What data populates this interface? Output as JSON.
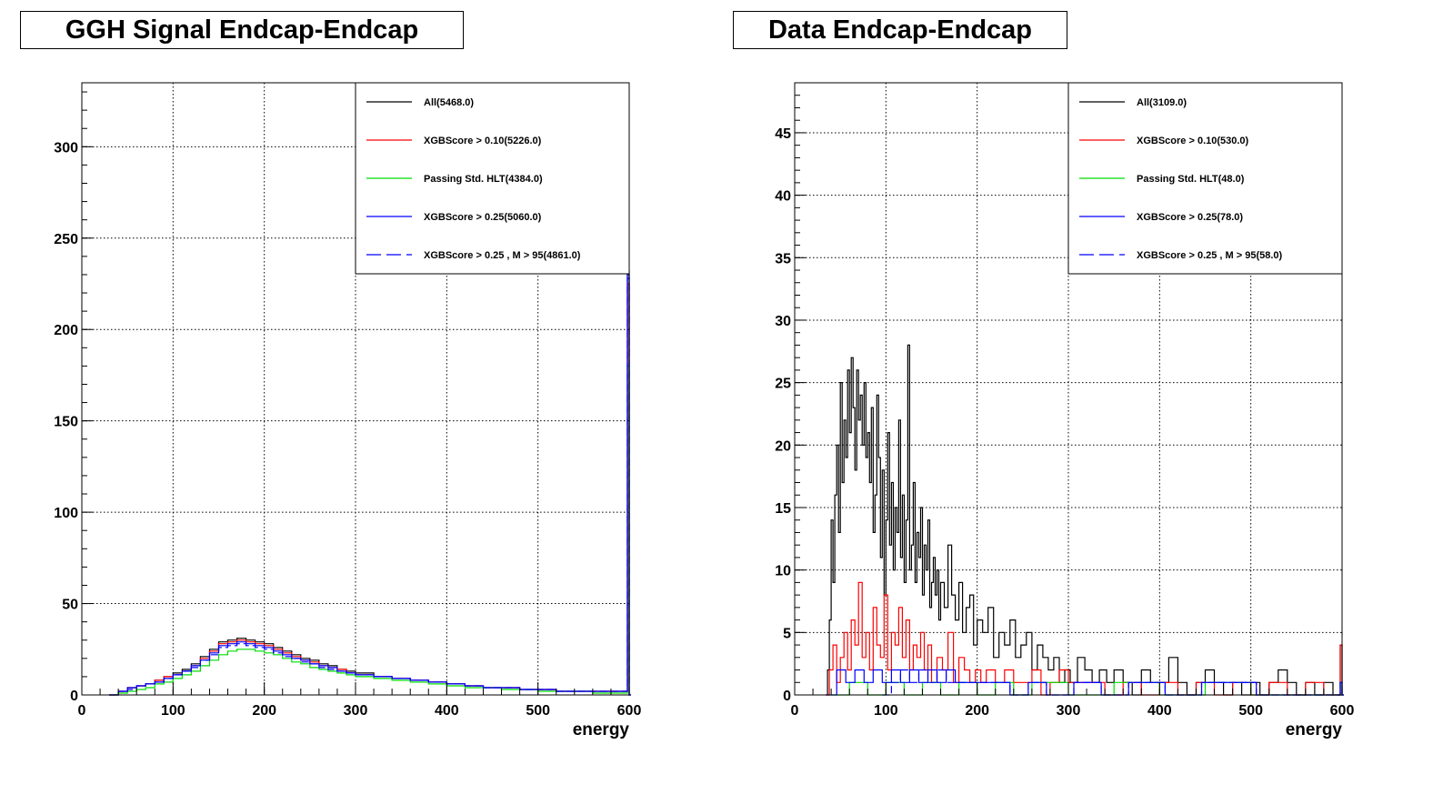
{
  "chart_data": [
    {
      "type": "line",
      "style": "step-histogram",
      "title": "GGH Signal Endcap-Endcap",
      "xlabel": "energy",
      "ylabel": "",
      "xlim": [
        0,
        600
      ],
      "ylim": [
        0,
        335
      ],
      "xticks": [
        0,
        100,
        200,
        300,
        400,
        500,
        600
      ],
      "yticks": [
        0,
        50,
        100,
        150,
        200,
        250,
        300
      ],
      "grid": true,
      "legend_position": "top-right",
      "bin_width": 2,
      "series": [
        {
          "name": "All(5468.0)",
          "color": "#000000",
          "dash": "solid",
          "x": [
            30,
            40,
            50,
            60,
            70,
            80,
            90,
            100,
            110,
            120,
            130,
            140,
            150,
            160,
            170,
            180,
            190,
            200,
            210,
            220,
            230,
            240,
            250,
            260,
            270,
            280,
            290,
            300,
            320,
            340,
            360,
            380,
            400,
            420,
            440,
            460,
            480,
            500,
            520,
            540,
            560,
            580,
            598,
            600
          ],
          "y": [
            0,
            2,
            4,
            5,
            6,
            8,
            10,
            12,
            14,
            17,
            21,
            25,
            29,
            30,
            31,
            30,
            29,
            28,
            26,
            24,
            22,
            20,
            19,
            17,
            16,
            14,
            13,
            12,
            10,
            9,
            8,
            7,
            6,
            5,
            4,
            4,
            3,
            3,
            2,
            2,
            2,
            2,
            230,
            0
          ]
        },
        {
          "name": "XGBScore > 0.10(5226.0)",
          "color": "#ff0000",
          "dash": "solid",
          "x": [
            30,
            40,
            50,
            60,
            70,
            80,
            90,
            100,
            110,
            120,
            130,
            140,
            150,
            160,
            170,
            180,
            190,
            200,
            210,
            220,
            230,
            240,
            250,
            260,
            270,
            280,
            290,
            300,
            320,
            340,
            360,
            380,
            400,
            420,
            440,
            460,
            480,
            500,
            520,
            540,
            560,
            580,
            598,
            600
          ],
          "y": [
            0,
            2,
            4,
            5,
            6,
            8,
            10,
            11,
            13,
            16,
            20,
            24,
            28,
            29,
            30,
            29,
            28,
            27,
            25,
            23,
            21,
            19,
            18,
            16,
            15,
            14,
            12,
            11,
            10,
            9,
            8,
            7,
            6,
            5,
            4,
            4,
            3,
            3,
            2,
            2,
            2,
            2,
            225,
            0
          ]
        },
        {
          "name": "Passing Std. HLT(4384.0)",
          "color": "#00dd00",
          "dash": "solid",
          "x": [
            30,
            40,
            50,
            60,
            70,
            80,
            90,
            100,
            110,
            120,
            130,
            140,
            150,
            160,
            170,
            180,
            190,
            200,
            210,
            220,
            230,
            240,
            250,
            260,
            270,
            280,
            290,
            300,
            320,
            340,
            360,
            380,
            400,
            420,
            440,
            460,
            480,
            500,
            520,
            540,
            560,
            580,
            598,
            600
          ],
          "y": [
            0,
            1,
            2,
            3,
            4,
            6,
            7,
            9,
            11,
            13,
            16,
            19,
            22,
            24,
            25,
            25,
            24,
            23,
            22,
            20,
            18,
            17,
            15,
            14,
            13,
            12,
            11,
            10,
            9,
            8,
            7,
            6,
            5,
            4,
            4,
            3,
            3,
            2,
            2,
            2,
            1,
            1,
            180,
            0
          ]
        },
        {
          "name": "XGBScore > 0.25(5060.0)",
          "color": "#0000ff",
          "dash": "solid",
          "x": [
            30,
            40,
            50,
            60,
            70,
            80,
            90,
            100,
            110,
            120,
            130,
            140,
            150,
            160,
            170,
            180,
            190,
            200,
            210,
            220,
            230,
            240,
            250,
            260,
            270,
            280,
            290,
            300,
            320,
            340,
            360,
            380,
            400,
            420,
            440,
            460,
            480,
            500,
            520,
            540,
            560,
            580,
            598,
            600
          ],
          "y": [
            0,
            2,
            4,
            5,
            6,
            7,
            9,
            11,
            13,
            16,
            19,
            23,
            27,
            28,
            29,
            28,
            27,
            26,
            24,
            22,
            20,
            19,
            17,
            16,
            15,
            13,
            12,
            11,
            10,
            9,
            8,
            7,
            6,
            5,
            4,
            4,
            3,
            3,
            2,
            2,
            2,
            2,
            232,
            0
          ]
        },
        {
          "name": "XGBScore > 0.25 , M > 95(4861.0)",
          "color": "#0000ff",
          "dash": "dashed",
          "x": [
            30,
            40,
            50,
            60,
            70,
            80,
            90,
            100,
            110,
            120,
            130,
            140,
            150,
            160,
            170,
            180,
            190,
            200,
            210,
            220,
            230,
            240,
            250,
            260,
            270,
            280,
            290,
            300,
            320,
            340,
            360,
            380,
            400,
            420,
            440,
            460,
            480,
            500,
            520,
            540,
            560,
            580,
            598,
            600
          ],
          "y": [
            0,
            2,
            3,
            5,
            6,
            7,
            9,
            11,
            13,
            15,
            19,
            22,
            26,
            27,
            28,
            27,
            26,
            25,
            23,
            21,
            20,
            18,
            17,
            15,
            14,
            13,
            12,
            11,
            10,
            9,
            8,
            7,
            6,
            5,
            4,
            4,
            3,
            3,
            2,
            2,
            2,
            2,
            228,
            0
          ]
        }
      ]
    },
    {
      "type": "line",
      "style": "step-histogram",
      "title": "Data Endcap-Endcap",
      "xlabel": "energy",
      "ylabel": "",
      "xlim": [
        0,
        600
      ],
      "ylim": [
        0,
        49
      ],
      "xticks": [
        0,
        100,
        200,
        300,
        400,
        500,
        600
      ],
      "yticks": [
        0,
        5,
        10,
        15,
        20,
        25,
        30,
        35,
        40,
        45
      ],
      "grid": true,
      "legend_position": "top-right",
      "bin_width": 2,
      "series": [
        {
          "name": "All(3109.0)",
          "color": "#000000",
          "dash": "solid",
          "x": [
            34,
            36,
            38,
            40,
            42,
            44,
            46,
            48,
            50,
            52,
            54,
            56,
            58,
            60,
            62,
            64,
            66,
            68,
            70,
            72,
            74,
            76,
            78,
            80,
            82,
            84,
            86,
            88,
            90,
            92,
            94,
            96,
            98,
            100,
            102,
            104,
            106,
            108,
            110,
            112,
            114,
            116,
            118,
            120,
            122,
            124,
            126,
            128,
            130,
            132,
            134,
            136,
            138,
            140,
            142,
            144,
            146,
            148,
            150,
            152,
            154,
            156,
            158,
            160,
            164,
            168,
            172,
            176,
            180,
            184,
            188,
            192,
            196,
            200,
            206,
            212,
            218,
            224,
            230,
            236,
            242,
            248,
            254,
            260,
            266,
            272,
            278,
            284,
            290,
            296,
            302,
            310,
            318,
            326,
            334,
            342,
            350,
            360,
            370,
            380,
            390,
            400,
            410,
            420,
            430,
            440,
            450,
            460,
            470,
            480,
            490,
            500,
            510,
            520,
            530,
            540,
            550,
            560,
            570,
            580,
            590,
            598,
            600
          ],
          "y": [
            0,
            2,
            6,
            14,
            9,
            16,
            20,
            13,
            25,
            17,
            22,
            19,
            26,
            21,
            27,
            23,
            18,
            26,
            22,
            24,
            20,
            25,
            19,
            21,
            17,
            23,
            13,
            16,
            24,
            19,
            11,
            18,
            8,
            14,
            21,
            12,
            17,
            10,
            15,
            13,
            22,
            11,
            16,
            9,
            14,
            28,
            10,
            12,
            17,
            9,
            13,
            11,
            15,
            8,
            12,
            10,
            14,
            7,
            9,
            11,
            8,
            10,
            6,
            9,
            7,
            12,
            8,
            6,
            9,
            5,
            7,
            8,
            4,
            6,
            5,
            7,
            3,
            5,
            4,
            6,
            3,
            4,
            5,
            2,
            4,
            3,
            2,
            3,
            1,
            2,
            1,
            3,
            2,
            1,
            2,
            1,
            2,
            1,
            0,
            2,
            1,
            1,
            3,
            1,
            0,
            1,
            2,
            1,
            0,
            1,
            0,
            1,
            0,
            1,
            2,
            1,
            0,
            1,
            0,
            1,
            0,
            4,
            0
          ]
        },
        {
          "name": "XGBScore > 0.10(530.0)",
          "color": "#ff0000",
          "dash": "solid",
          "x": [
            34,
            38,
            42,
            46,
            50,
            54,
            58,
            62,
            66,
            70,
            74,
            78,
            82,
            86,
            90,
            94,
            98,
            102,
            106,
            110,
            114,
            118,
            122,
            126,
            130,
            134,
            138,
            142,
            146,
            150,
            156,
            162,
            168,
            174,
            180,
            186,
            192,
            198,
            204,
            210,
            220,
            230,
            240,
            250,
            260,
            270,
            280,
            290,
            300,
            320,
            340,
            360,
            380,
            400,
            420,
            440,
            460,
            480,
            500,
            520,
            540,
            560,
            580,
            598,
            600
          ],
          "y": [
            0,
            2,
            4,
            1,
            3,
            5,
            2,
            6,
            4,
            9,
            3,
            5,
            2,
            7,
            4,
            3,
            8,
            2,
            5,
            4,
            7,
            3,
            6,
            2,
            4,
            3,
            5,
            2,
            4,
            1,
            3,
            2,
            5,
            1,
            3,
            2,
            1,
            2,
            1,
            2,
            1,
            2,
            1,
            1,
            2,
            0,
            1,
            2,
            1,
            1,
            0,
            1,
            0,
            1,
            0,
            1,
            0,
            1,
            0,
            1,
            0,
            1,
            0,
            4,
            0
          ]
        },
        {
          "name": "Passing Std. HLT(48.0)",
          "color": "#00dd00",
          "dash": "solid",
          "x": [
            40,
            60,
            80,
            100,
            120,
            140,
            160,
            180,
            200,
            220,
            240,
            260,
            300,
            350,
            400,
            450,
            500,
            598,
            600
          ],
          "y": [
            0,
            1,
            0,
            1,
            0,
            1,
            0,
            1,
            0,
            1,
            0,
            1,
            0,
            1,
            0,
            1,
            0,
            1,
            0
          ]
        },
        {
          "name": "XGBScore > 0.25(78.0)",
          "color": "#0000ff",
          "dash": "solid",
          "x": [
            36,
            46,
            56,
            66,
            76,
            86,
            96,
            106,
            116,
            126,
            136,
            146,
            156,
            166,
            176,
            186,
            196,
            216,
            236,
            256,
            276,
            306,
            336,
            366,
            406,
            446,
            506,
            598,
            600
          ],
          "y": [
            0,
            2,
            1,
            2,
            1,
            2,
            1,
            2,
            1,
            2,
            1,
            2,
            1,
            2,
            1,
            1,
            1,
            1,
            0,
            1,
            0,
            1,
            0,
            1,
            0,
            1,
            0,
            1,
            0
          ]
        },
        {
          "name": "XGBScore > 0.25 , M > 95(58.0)",
          "color": "#0000ff",
          "dash": "dashed",
          "x": [
            96,
            106,
            116,
            126,
            136,
            146,
            156,
            166,
            176,
            186,
            196,
            216,
            236,
            256,
            276,
            306,
            336,
            366,
            406,
            446,
            506,
            598,
            600
          ],
          "y": [
            0,
            1,
            2,
            1,
            2,
            1,
            2,
            1,
            1,
            1,
            1,
            1,
            0,
            1,
            0,
            1,
            0,
            1,
            0,
            1,
            0,
            1,
            0
          ]
        }
      ]
    }
  ]
}
